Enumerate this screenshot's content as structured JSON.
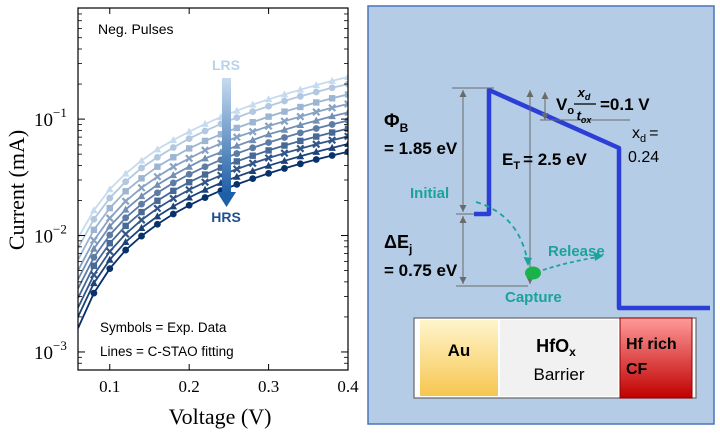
{
  "colors": {
    "lrs": "#c6dbef",
    "hrs": "#08306b",
    "band": "#2b3fd8",
    "panel_bg": "#b5cce6",
    "panel_border": "#4a74b8",
    "teal": "#1aa39a",
    "au_top": "#fff5cc",
    "au_bottom": "#f6c64f",
    "hf_top": "#ff9a9a",
    "hf_bottom": "#c00000",
    "capture": "#1ab34a"
  },
  "chart_data": {
    "type": "scatter",
    "title": "",
    "xlabel": "Voltage (V)",
    "ylabel": "Current (mA)",
    "xlim": [
      0.06,
      0.4
    ],
    "ylim": [
      0.0007,
      0.9
    ],
    "yscale": "log",
    "xticks": [
      0.1,
      0.2,
      0.3,
      0.4
    ],
    "xtick_labels": [
      "0.1",
      "0.2",
      "0.3",
      "0.4"
    ],
    "yticks": [
      0.001,
      0.01,
      0.1
    ],
    "ytick_labels": [
      {
        "base": "10",
        "exp": "−3"
      },
      {
        "base": "10",
        "exp": "−2"
      },
      {
        "base": "10",
        "exp": "−1"
      }
    ],
    "legend_text": [
      "Neg. Pulses"
    ],
    "notes": [
      "Symbols = Exp. Data",
      "Lines = C-STAO fitting"
    ],
    "arrow_labels": {
      "top": "LRS",
      "bottom": "HRS"
    },
    "x": [
      0.06,
      0.08,
      0.1,
      0.12,
      0.14,
      0.16,
      0.18,
      0.2,
      0.22,
      0.24,
      0.26,
      0.28,
      0.3,
      0.32,
      0.34,
      0.36,
      0.38,
      0.4
    ],
    "series": [
      {
        "values": [
          0.0095,
          0.0165,
          0.025,
          0.034,
          0.044,
          0.055,
          0.066,
          0.078,
          0.091,
          0.104,
          0.118,
          0.133,
          0.148,
          0.163,
          0.179,
          0.196,
          0.213,
          0.23
        ]
      },
      {
        "values": [
          0.0078,
          0.0138,
          0.021,
          0.029,
          0.038,
          0.047,
          0.057,
          0.068,
          0.079,
          0.091,
          0.103,
          0.116,
          0.129,
          0.143,
          0.157,
          0.171,
          0.186,
          0.2
        ]
      },
      {
        "values": [
          0.0062,
          0.0112,
          0.0172,
          0.024,
          0.031,
          0.039,
          0.047,
          0.056,
          0.065,
          0.074,
          0.084,
          0.094,
          0.105,
          0.116,
          0.127,
          0.139,
          0.151,
          0.163
        ]
      },
      {
        "values": [
          0.005,
          0.0091,
          0.0141,
          0.0197,
          0.0257,
          0.032,
          0.039,
          0.046,
          0.054,
          0.062,
          0.07,
          0.078,
          0.087,
          0.096,
          0.105,
          0.115,
          0.125,
          0.135
        ]
      },
      {
        "values": [
          0.0042,
          0.0077,
          0.012,
          0.0167,
          0.0218,
          0.0272,
          0.033,
          0.039,
          0.046,
          0.052,
          0.059,
          0.066,
          0.074,
          0.081,
          0.089,
          0.097,
          0.106,
          0.114
        ]
      },
      {
        "values": [
          0.0035,
          0.0065,
          0.0101,
          0.0142,
          0.0186,
          0.0233,
          0.0283,
          0.0336,
          0.039,
          0.0447,
          0.0506,
          0.0567,
          0.063,
          0.0695,
          0.0762,
          0.083,
          0.09,
          0.097
        ]
      },
      {
        "values": [
          0.0029,
          0.0055,
          0.0086,
          0.0121,
          0.0159,
          0.0199,
          0.0242,
          0.0287,
          0.0334,
          0.0383,
          0.0433,
          0.0485,
          0.0538,
          0.0593,
          0.065,
          0.0708,
          0.0767,
          0.0828
        ]
      },
      {
        "values": [
          0.0024,
          0.0046,
          0.0073,
          0.0103,
          0.0136,
          0.0171,
          0.0208,
          0.0247,
          0.0287,
          0.0329,
          0.0372,
          0.0417,
          0.0463,
          0.051,
          0.0558,
          0.0608,
          0.0659,
          0.0711
        ]
      },
      {
        "values": [
          0.002,
          0.0039,
          0.0062,
          0.0088,
          0.0116,
          0.0146,
          0.0178,
          0.0212,
          0.0247,
          0.0283,
          0.032,
          0.0358,
          0.0398,
          0.0438,
          0.048,
          0.0523,
          0.0566,
          0.0611
        ]
      },
      {
        "values": [
          0.0016,
          0.0032,
          0.0052,
          0.0075,
          0.0099,
          0.0125,
          0.0153,
          0.0182,
          0.0212,
          0.0243,
          0.0275,
          0.0308,
          0.0342,
          0.0377,
          0.0413,
          0.045,
          0.0487,
          0.0525
        ]
      }
    ]
  },
  "diagram": {
    "phi_b_symbol": "Φ",
    "phi_b_sub": "B",
    "phi_b_value": "= 1.85 eV",
    "v_symbol": "V",
    "v_sub": "o",
    "frac_num_main": "x",
    "frac_num_sub": "d",
    "frac_den_main": "t",
    "frac_den_sub": "ox",
    "v_value": "=0.1 V",
    "xd_symbol": "x",
    "xd_sub": "d",
    "xd_eq": "=",
    "xd_value": "0.24",
    "et_symbol": "E",
    "et_sub": "T",
    "et_value": "= 2.5 eV",
    "initial_label": "Initial",
    "release_label": "Release",
    "capture_label": "Capture",
    "dej_symbol": "ΔE",
    "dej_sub": "j",
    "dej_value": "= 0.75 eV",
    "au_label": "Au",
    "hfox_main": "HfO",
    "hfox_sub": "x",
    "barrier_label": "Barrier",
    "hf_rich_label": "Hf rich",
    "cf_label": "CF"
  }
}
